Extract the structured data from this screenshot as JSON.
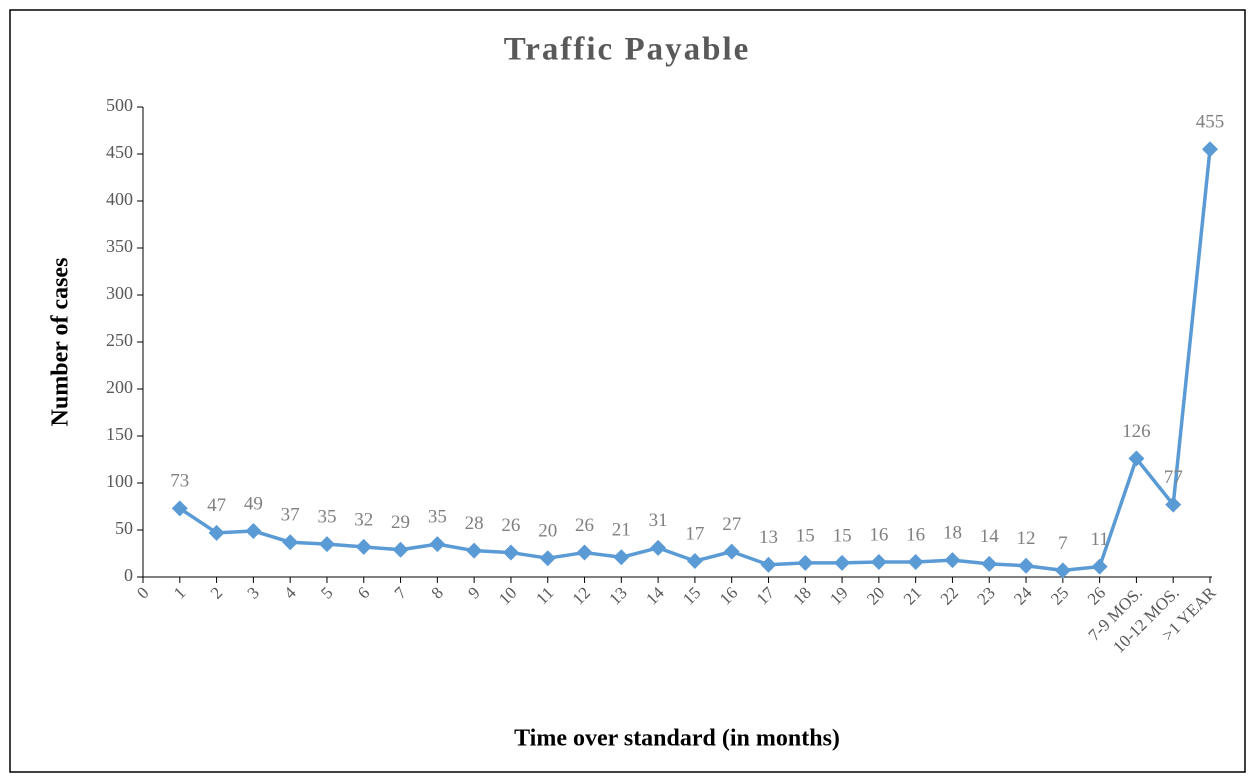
{
  "chart_data": {
    "type": "line",
    "title": "Traffic Payable",
    "x_label": "Time over standard (in months)",
    "y_label": "Number of cases",
    "categories": [
      "0",
      "1",
      "2",
      "3",
      "4",
      "5",
      "6",
      "7",
      "8",
      "9",
      "10",
      "11",
      "12",
      "13",
      "14",
      "15",
      "16",
      "17",
      "18",
      "19",
      "20",
      "21",
      "22",
      "23",
      "24",
      "25",
      "26",
      "7-9 MOS.",
      "10-12 MOS.",
      ">1 YEAR"
    ],
    "series": [
      {
        "name": "Number of cases",
        "color": "#5b9bd5",
        "values": [
          null,
          73,
          47,
          49,
          37,
          35,
          32,
          29,
          35,
          28,
          26,
          20,
          26,
          21,
          31,
          17,
          27,
          13,
          15,
          15,
          16,
          16,
          18,
          14,
          12,
          7,
          11,
          126,
          77,
          455
        ]
      }
    ],
    "ylim": [
      0,
      500
    ],
    "yticks": [
      0,
      50,
      100,
      150,
      200,
      250,
      300,
      350,
      400,
      450,
      500
    ]
  }
}
